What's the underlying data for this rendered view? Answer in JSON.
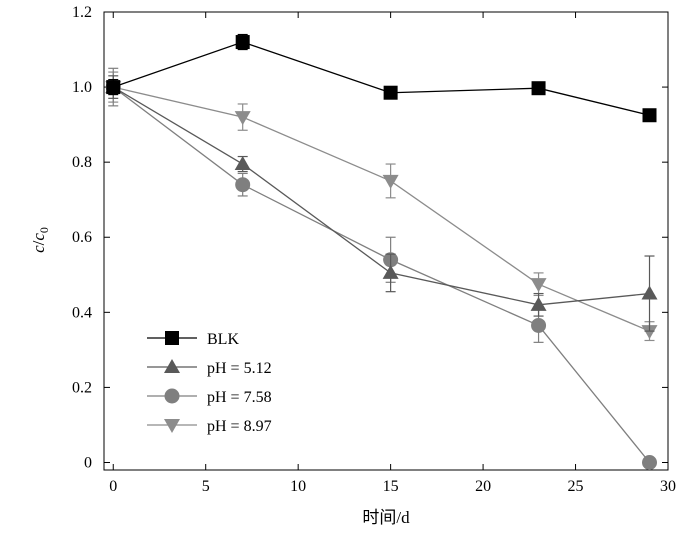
{
  "chart_data": {
    "type": "line",
    "title": "",
    "xlabel": "时间/d",
    "ylabel": {
      "main": "c",
      "sep": "/",
      "sub_base": "c",
      "sub": "0"
    },
    "xlim": [
      -0.5,
      30
    ],
    "ylim": [
      -0.02,
      1.2
    ],
    "xticks": [
      0,
      5,
      10,
      15,
      20,
      25,
      30
    ],
    "xtick_labels": [
      "0",
      "5",
      "10",
      "15",
      "20",
      "25",
      "30"
    ],
    "yticks": [
      0,
      0.2,
      0.4,
      0.6,
      0.8,
      1.0,
      1.2
    ],
    "ytick_labels": [
      "0",
      "0.2",
      "0.4",
      "0.6",
      "0.8",
      "1.0",
      "1.2"
    ],
    "grid": false,
    "legend_position": "bottom-left",
    "series": [
      {
        "name": "BLK",
        "marker": "square",
        "color": "#000000",
        "x": [
          0,
          7,
          15,
          23,
          29
        ],
        "y": [
          1.0,
          1.12,
          0.985,
          0.997,
          0.925
        ],
        "err": [
          0.02,
          0.02,
          0.01,
          0.01,
          0.01
        ]
      },
      {
        "name": "pH = 5.12",
        "marker": "triangle-up",
        "color": "#595959",
        "x": [
          0,
          7,
          15,
          23,
          29
        ],
        "y": [
          1.0,
          0.795,
          0.505,
          0.42,
          0.45
        ],
        "err": [
          0.03,
          0.02,
          0.05,
          0.03,
          0.1
        ]
      },
      {
        "name": "pH = 7.58",
        "marker": "circle",
        "color": "#7f7f7f",
        "x": [
          0,
          7,
          15,
          23,
          29
        ],
        "y": [
          1.0,
          0.74,
          0.54,
          0.365,
          0.0
        ],
        "err": [
          0.05,
          0.03,
          0.06,
          0.045,
          0.0
        ]
      },
      {
        "name": "pH = 8.97",
        "marker": "triangle-down",
        "color": "#8c8c8c",
        "x": [
          0,
          7,
          15,
          23,
          29
        ],
        "y": [
          1.0,
          0.92,
          0.75,
          0.475,
          0.35
        ],
        "err": [
          0.04,
          0.035,
          0.045,
          0.03,
          0.025
        ]
      }
    ]
  }
}
